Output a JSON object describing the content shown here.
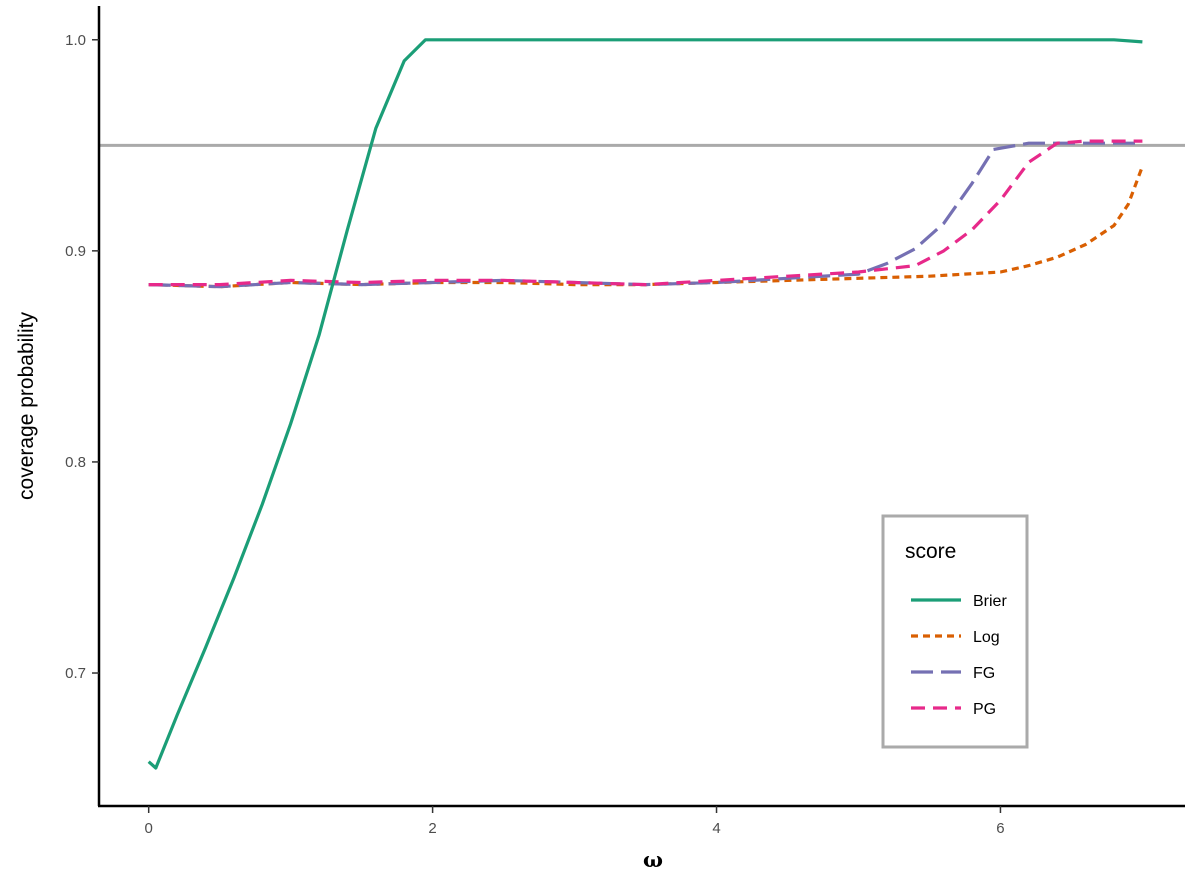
{
  "chart_data": {
    "type": "line",
    "title": "",
    "xlabel": "ω",
    "ylabel": "coverage probability",
    "xlim": [
      -0.35,
      7.3
    ],
    "ylim": [
      0.637,
      1.016
    ],
    "x_ticks": [
      0,
      2,
      4,
      6
    ],
    "x_tick_labels": [
      "0",
      "2",
      "4",
      "6"
    ],
    "y_ticks": [
      0.7,
      0.8,
      0.9,
      1.0
    ],
    "y_tick_labels": [
      "0.7",
      "0.8",
      "0.9",
      "1.0"
    ],
    "grid": false,
    "reference_line": {
      "y": 0.95,
      "color": "#aaaaaa"
    },
    "legend": {
      "title": "score",
      "position": "bottom-right"
    },
    "series": [
      {
        "name": "Brier",
        "color": "#1b9e77",
        "dash": "solid",
        "x": [
          0,
          0.05,
          0.2,
          0.4,
          0.6,
          0.8,
          1.0,
          1.2,
          1.4,
          1.6,
          1.8,
          1.95,
          2.2,
          3.0,
          4.0,
          5.0,
          6.0,
          6.5,
          6.8,
          7.0
        ],
        "y": [
          0.658,
          0.655,
          0.68,
          0.712,
          0.745,
          0.78,
          0.818,
          0.86,
          0.91,
          0.958,
          0.99,
          1.0,
          1.0,
          1.0,
          1.0,
          1.0,
          1.0,
          1.0,
          1.0,
          0.999
        ]
      },
      {
        "name": "Log",
        "color": "#d95f02",
        "dash": "dotted",
        "x": [
          0,
          0.5,
          1.0,
          1.5,
          2.0,
          2.5,
          3.0,
          3.5,
          4.0,
          4.5,
          5.0,
          5.5,
          6.0,
          6.2,
          6.4,
          6.6,
          6.8,
          6.9,
          7.0
        ],
        "y": [
          0.884,
          0.883,
          0.885,
          0.884,
          0.885,
          0.885,
          0.884,
          0.884,
          0.885,
          0.886,
          0.887,
          0.888,
          0.89,
          0.893,
          0.897,
          0.903,
          0.912,
          0.922,
          0.94
        ]
      },
      {
        "name": "FG",
        "color": "#7570b3",
        "dash": "longdash",
        "x": [
          0,
          0.5,
          1.0,
          1.5,
          2.0,
          2.5,
          3.0,
          3.5,
          4.0,
          4.5,
          5.0,
          5.2,
          5.4,
          5.6,
          5.8,
          5.95,
          6.2,
          6.5,
          7.0
        ],
        "y": [
          0.884,
          0.883,
          0.885,
          0.884,
          0.885,
          0.886,
          0.885,
          0.884,
          0.885,
          0.887,
          0.889,
          0.894,
          0.901,
          0.913,
          0.932,
          0.948,
          0.951,
          0.951,
          0.951
        ]
      },
      {
        "name": "PG",
        "color": "#e7298a",
        "dash": "dashed",
        "x": [
          0,
          0.5,
          1.0,
          1.5,
          2.0,
          2.5,
          3.0,
          3.5,
          4.0,
          4.5,
          5.0,
          5.4,
          5.6,
          5.8,
          6.0,
          6.2,
          6.4,
          6.6,
          7.0
        ],
        "y": [
          0.884,
          0.884,
          0.886,
          0.885,
          0.886,
          0.886,
          0.885,
          0.884,
          0.886,
          0.888,
          0.89,
          0.893,
          0.9,
          0.91,
          0.924,
          0.942,
          0.951,
          0.952,
          0.952
        ]
      }
    ]
  }
}
